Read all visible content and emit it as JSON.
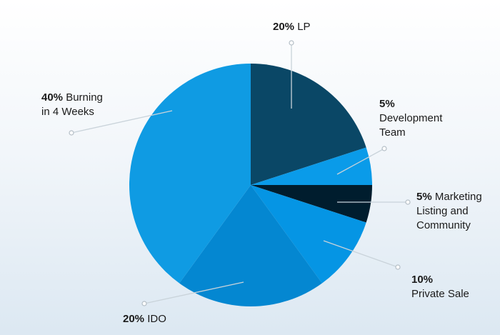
{
  "chart_data": {
    "type": "pie",
    "title": "",
    "slices": [
      {
        "pct": "20%",
        "lines": [
          "LP"
        ],
        "value": 20,
        "color": "#0a4766"
      },
      {
        "pct": "5%",
        "lines": [
          "",
          "Development",
          "Team"
        ],
        "value": 5,
        "color": "#0a9be9"
      },
      {
        "pct": "5%",
        "lines": [
          "Marketing",
          "Listing and",
          "Community"
        ],
        "value": 5,
        "color": "#001d2e"
      },
      {
        "pct": "10%",
        "lines": [
          "",
          "Private Sale"
        ],
        "value": 10,
        "color": "#0595e4"
      },
      {
        "pct": "20%",
        "lines": [
          "IDO"
        ],
        "value": 20,
        "color": "#0487d1"
      },
      {
        "pct": "40%",
        "lines": [
          "Burning",
          "in 4 Weeks"
        ],
        "value": 40,
        "color": "#0f9be3"
      }
    ]
  }
}
